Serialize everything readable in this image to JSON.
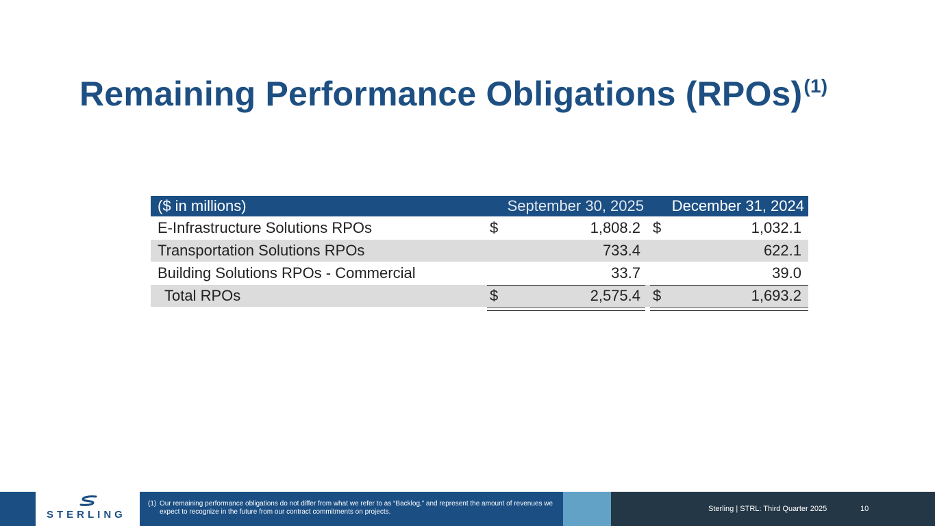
{
  "title": "Remaining Performance Obligations (RPOs)",
  "title_superscript": "(1)",
  "table": {
    "header": {
      "label": "($ in millions)",
      "col1": "September 30, 2025",
      "col2": "December 31, 2024"
    },
    "rows": [
      {
        "label": "E-Infrastructure Solutions RPOs",
        "dollar1": "$",
        "val1": "1,808.2",
        "dollar2": "$",
        "val2": "1,032.1"
      },
      {
        "label": "Transportation Solutions RPOs",
        "val1": "733.4",
        "val2": "622.1"
      },
      {
        "label": "Building Solutions RPOs - Commercial",
        "val1": "33.7",
        "val2": "39.0"
      }
    ],
    "total": {
      "label": "Total RPOs",
      "dollar1": "$",
      "val1": "2,575.4",
      "dollar2": "$",
      "val2": "1,693.2"
    }
  },
  "footer": {
    "logo_text": "STERLING",
    "footnote_number": "(1)",
    "footnote_text": "Our remaining performance obligations do not differ from what we refer to as “Backlog,” and represent the amount of revenues we expect to recognize in the future from our contract commitments on projects.",
    "label": "Sterling | STRL:  Third Quarter  2025",
    "page_number": "10"
  },
  "colors": {
    "brand_blue": "#1b4f84",
    "title_blue": "#1d4f82",
    "light_blue": "#62a2c7",
    "dark_slate": "#243746",
    "row_grey": "#dcdcdc"
  }
}
